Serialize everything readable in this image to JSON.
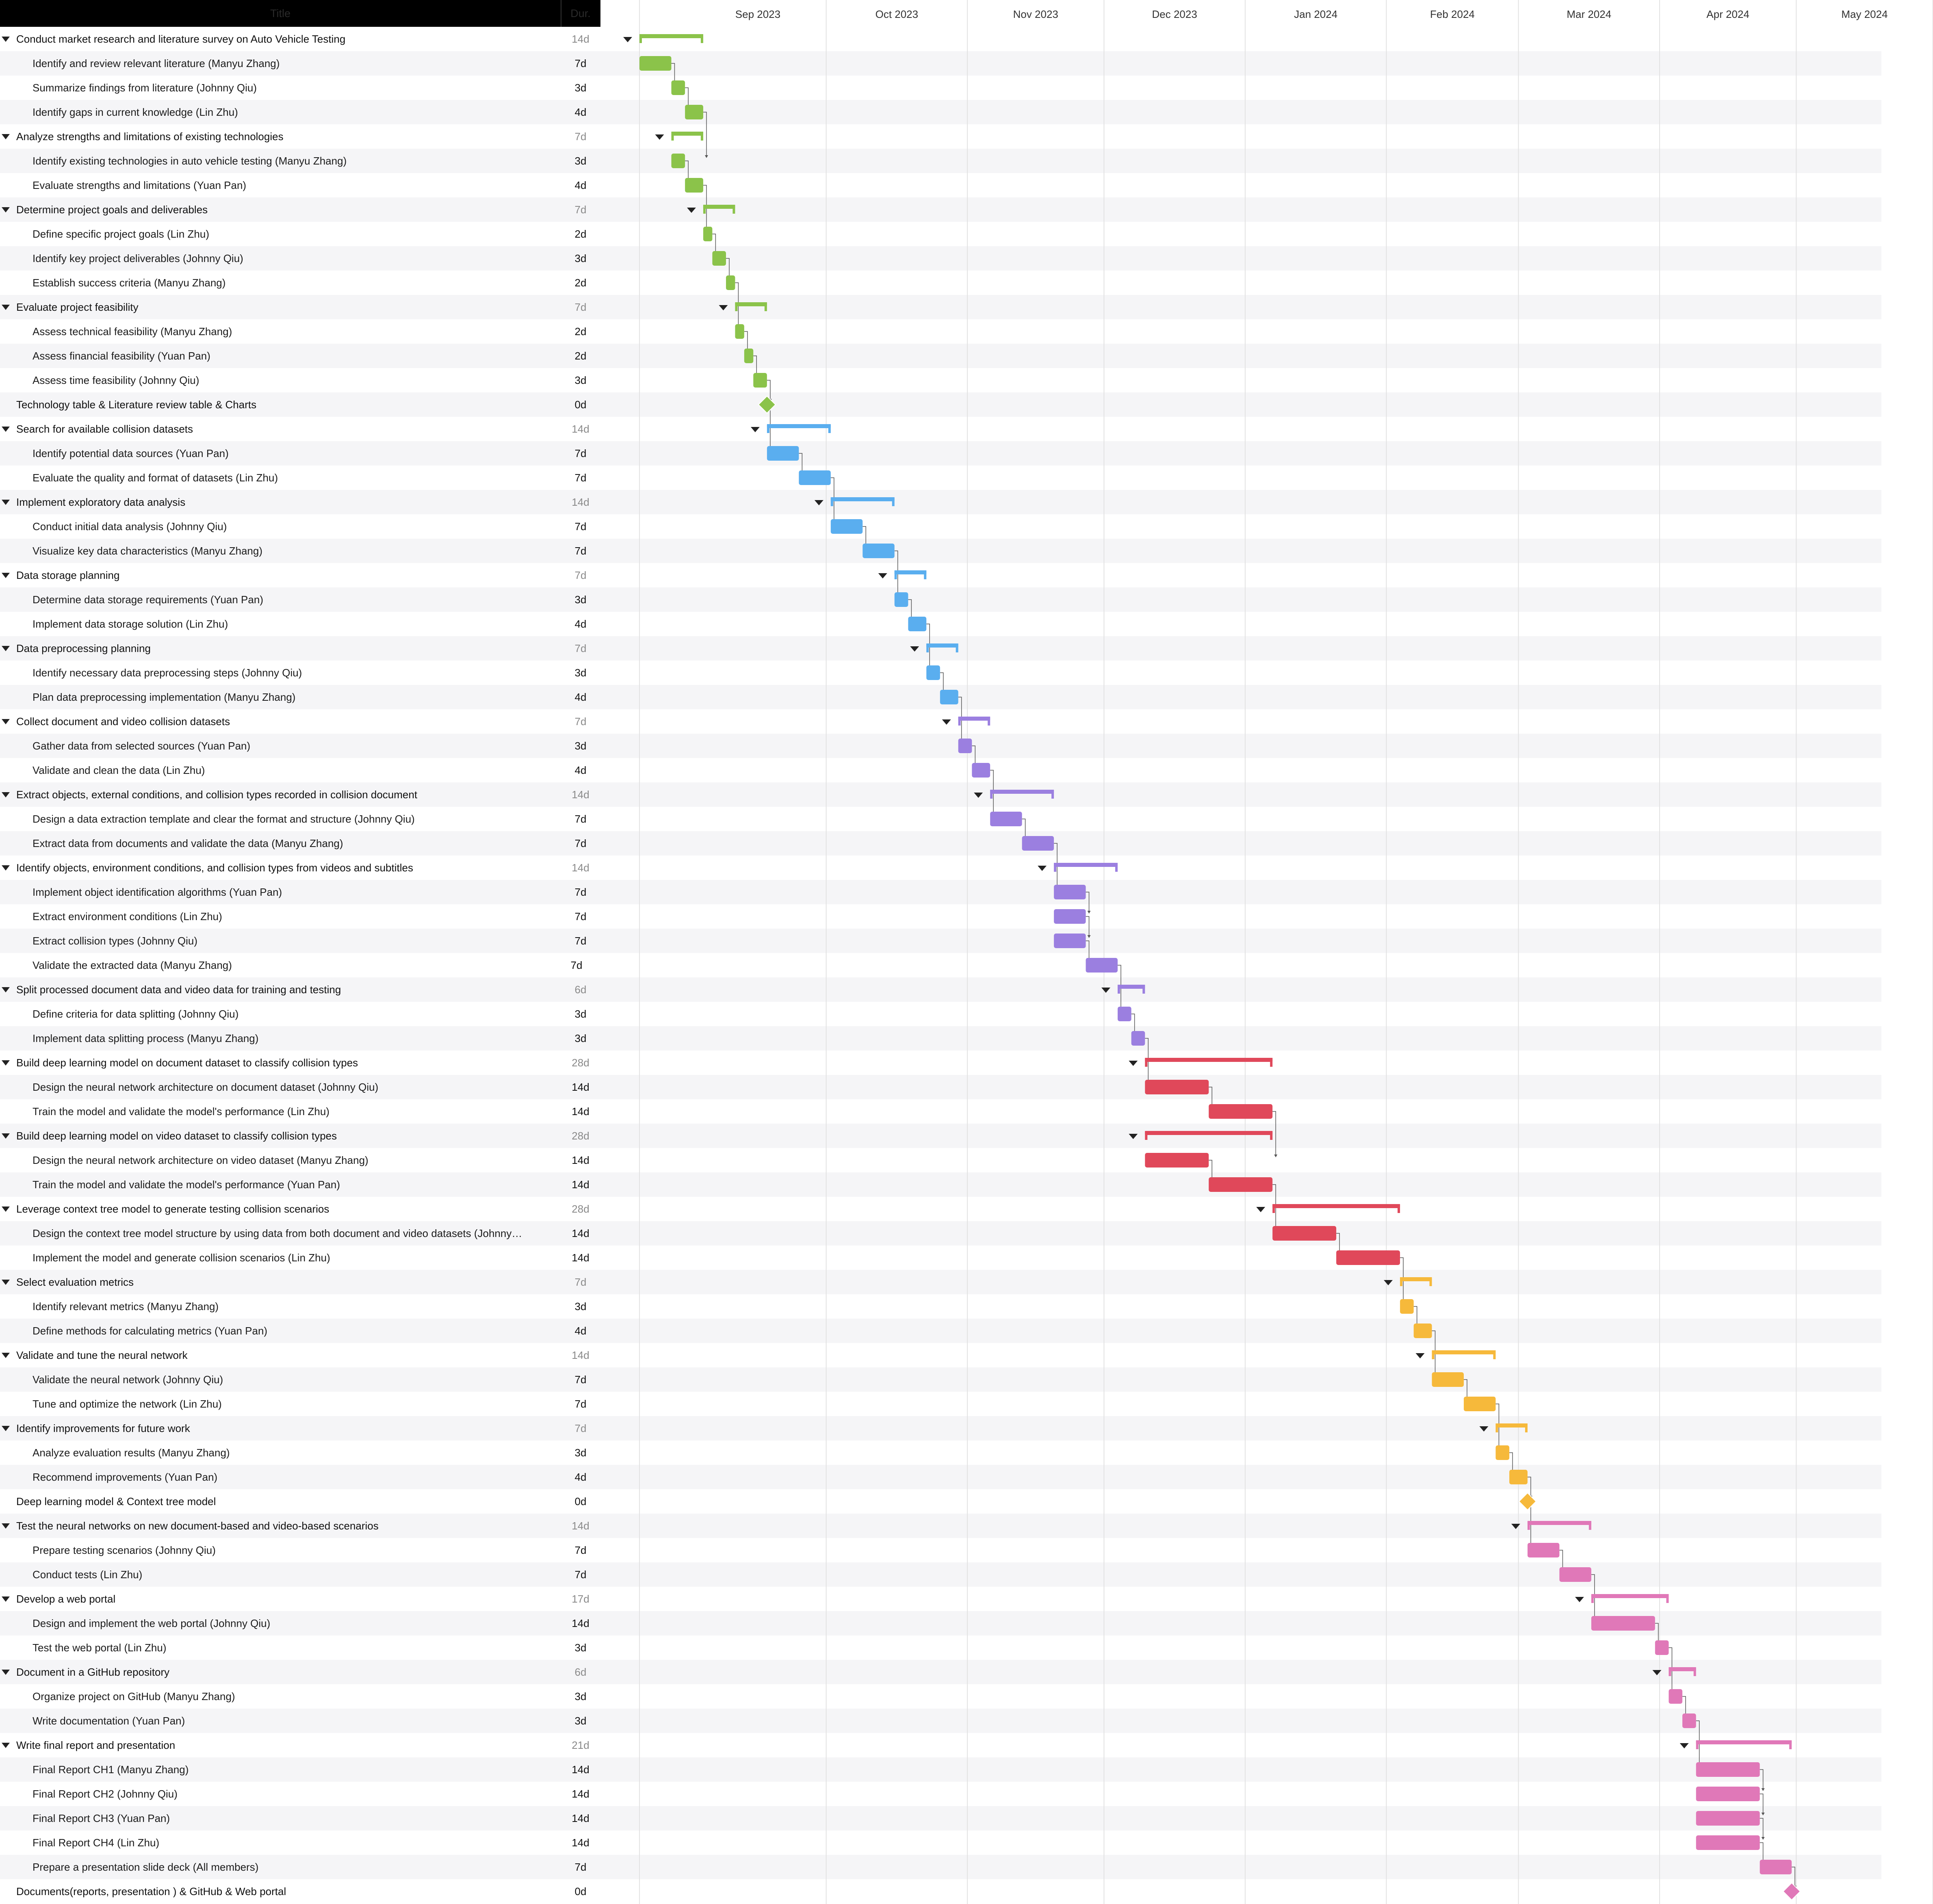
{
  "header": {
    "title": "Title",
    "duration": "Dur."
  },
  "colors": {
    "research": "#8bc34a",
    "data": "#5aaeef",
    "processing": "#9b7fe0",
    "modeling": "#e0485a",
    "evaluation": "#f6b93b",
    "delivery": "#e078b8"
  },
  "chart_data": {
    "type": "gantt",
    "x_axis": {
      "ticks": [
        "Sep 2023",
        "Oct 2023",
        "Nov 2023",
        "Dec 2023",
        "Jan 2024",
        "Feb 2024",
        "Mar 2024",
        "Apr 2024",
        "May 2024"
      ],
      "start": "2023-08-21",
      "end": "2024-05-12"
    },
    "tasks": [
      {
        "title": "Conduct market research and literature survey on Auto Vehicle Testing",
        "dur": "14d",
        "group": true,
        "start": "2023-08-21",
        "end": "2023-09-04",
        "color": "research"
      },
      {
        "title": "Identify and review relevant literature (Manyu Zhang)",
        "dur": "7d",
        "start": "2023-08-21",
        "end": "2023-08-28",
        "color": "research"
      },
      {
        "title": "Summarize findings from literature (Johnny Qiu)",
        "dur": "3d",
        "start": "2023-08-28",
        "end": "2023-08-31",
        "color": "research"
      },
      {
        "title": "Identify gaps in current knowledge (Lin Zhu)",
        "dur": "4d",
        "start": "2023-08-31",
        "end": "2023-09-04",
        "color": "research"
      },
      {
        "title": "Analyze strengths and limitations of existing technologies",
        "dur": "7d",
        "group": true,
        "start": "2023-08-28",
        "end": "2023-09-04",
        "color": "research"
      },
      {
        "title": "Identify existing technologies in auto vehicle testing (Manyu Zhang)",
        "dur": "3d",
        "start": "2023-08-28",
        "end": "2023-08-31",
        "color": "research"
      },
      {
        "title": "Evaluate strengths and limitations (Yuan Pan)",
        "dur": "4d",
        "start": "2023-08-31",
        "end": "2023-09-04",
        "color": "research"
      },
      {
        "title": "Determine project goals and deliverables",
        "dur": "7d",
        "group": true,
        "start": "2023-09-04",
        "end": "2023-09-11",
        "color": "research"
      },
      {
        "title": "Define specific project goals (Lin Zhu)",
        "dur": "2d",
        "start": "2023-09-04",
        "end": "2023-09-06",
        "color": "research"
      },
      {
        "title": "Identify key project deliverables (Johnny Qiu)",
        "dur": "3d",
        "start": "2023-09-06",
        "end": "2023-09-09",
        "color": "research"
      },
      {
        "title": "Establish success criteria (Manyu Zhang)",
        "dur": "2d",
        "start": "2023-09-09",
        "end": "2023-09-11",
        "color": "research"
      },
      {
        "title": "Evaluate project feasibility",
        "dur": "7d",
        "group": true,
        "start": "2023-09-11",
        "end": "2023-09-18",
        "color": "research"
      },
      {
        "title": "Assess technical feasibility (Manyu Zhang)",
        "dur": "2d",
        "start": "2023-09-11",
        "end": "2023-09-13",
        "color": "research"
      },
      {
        "title": "Assess financial feasibility (Yuan Pan)",
        "dur": "2d",
        "start": "2023-09-13",
        "end": "2023-09-15",
        "color": "research"
      },
      {
        "title": "Assess time feasibility (Johnny Qiu)",
        "dur": "3d",
        "start": "2023-09-15",
        "end": "2023-09-18",
        "color": "research"
      },
      {
        "title": "Technology table & Literature review table & Charts",
        "dur": "0d",
        "milestone": true,
        "start": "2023-09-18",
        "end": "2023-09-18",
        "color": "research"
      },
      {
        "title": "Search for available collision datasets",
        "dur": "14d",
        "group": true,
        "start": "2023-09-18",
        "end": "2023-10-02",
        "color": "data"
      },
      {
        "title": "Identify potential data sources (Yuan Pan)",
        "dur": "7d",
        "start": "2023-09-18",
        "end": "2023-09-25",
        "color": "data"
      },
      {
        "title": "Evaluate the quality and format of datasets (Lin Zhu)",
        "dur": "7d",
        "start": "2023-09-25",
        "end": "2023-10-02",
        "color": "data"
      },
      {
        "title": "Implement exploratory data analysis",
        "dur": "14d",
        "group": true,
        "start": "2023-10-02",
        "end": "2023-10-16",
        "color": "data"
      },
      {
        "title": "Conduct initial data analysis (Johnny Qiu)",
        "dur": "7d",
        "start": "2023-10-02",
        "end": "2023-10-09",
        "color": "data"
      },
      {
        "title": "Visualize key data characteristics (Manyu Zhang)",
        "dur": "7d",
        "start": "2023-10-09",
        "end": "2023-10-16",
        "color": "data"
      },
      {
        "title": "Data storage planning",
        "dur": "7d",
        "group": true,
        "start": "2023-10-16",
        "end": "2023-10-23",
        "color": "data"
      },
      {
        "title": "Determine data storage requirements (Yuan Pan)",
        "dur": "3d",
        "start": "2023-10-16",
        "end": "2023-10-19",
        "color": "data"
      },
      {
        "title": "Implement data storage solution (Lin Zhu)",
        "dur": "4d",
        "start": "2023-10-19",
        "end": "2023-10-23",
        "color": "data"
      },
      {
        "title": "Data preprocessing planning",
        "dur": "7d",
        "group": true,
        "start": "2023-10-23",
        "end": "2023-10-30",
        "color": "data"
      },
      {
        "title": "Identify necessary data preprocessing steps (Johnny Qiu)",
        "dur": "3d",
        "start": "2023-10-23",
        "end": "2023-10-26",
        "color": "data"
      },
      {
        "title": "Plan data preprocessing implementation (Manyu Zhang)",
        "dur": "4d",
        "start": "2023-10-26",
        "end": "2023-10-30",
        "color": "data"
      },
      {
        "title": "Collect document and video collision datasets",
        "dur": "7d",
        "group": true,
        "start": "2023-10-30",
        "end": "2023-11-06",
        "color": "processing"
      },
      {
        "title": "Gather data from selected sources (Yuan Pan)",
        "dur": "3d",
        "start": "2023-10-30",
        "end": "2023-11-02",
        "color": "processing"
      },
      {
        "title": "Validate and clean the data (Lin Zhu)",
        "dur": "4d",
        "start": "2023-11-02",
        "end": "2023-11-06",
        "color": "processing"
      },
      {
        "title": " Extract objects, external conditions, and collision types recorded in collision document",
        "dur": "14d",
        "group": true,
        "start": "2023-11-06",
        "end": "2023-11-20",
        "color": "processing"
      },
      {
        "title": "Design a data extraction template and clear the format and structure (Johnny Qiu)",
        "dur": "7d",
        "start": "2023-11-06",
        "end": "2023-11-13",
        "color": "processing"
      },
      {
        "title": "Extract data from documents and validate the data (Manyu Zhang)",
        "dur": "7d",
        "start": "2023-11-13",
        "end": "2023-11-20",
        "color": "processing"
      },
      {
        "title": "Identify objects, environment conditions, and collision types from videos and subtitles",
        "dur": "14d",
        "group": true,
        "start": "2023-11-20",
        "end": "2023-12-04",
        "color": "processing"
      },
      {
        "title": "Implement object identification algorithms (Yuan Pan)",
        "dur": "7d",
        "start": "2023-11-20",
        "end": "2023-11-27",
        "color": "processing"
      },
      {
        "title": "Extract environment conditions (Lin Zhu)",
        "dur": "7d",
        "start": "2023-11-20",
        "end": "2023-11-27",
        "color": "processing"
      },
      {
        "title": "Extract collision types (Johnny Qiu)",
        "dur": "7d",
        "start": "2023-11-20",
        "end": "2023-11-27",
        "color": "processing"
      },
      {
        "title": "Validate the extracted data (Manyu Zhang)",
        "dur": "7d",
        "start": "2023-11-27",
        "end": "2023-12-04",
        "color": "processing",
        "dur_offset": true
      },
      {
        "title": "Split processed document data and video data for training and testing",
        "dur": "6d",
        "group": true,
        "start": "2023-12-04",
        "end": "2023-12-10",
        "color": "processing"
      },
      {
        "title": "Define criteria for data splitting (Johnny Qiu)",
        "dur": "3d",
        "start": "2023-12-04",
        "end": "2023-12-07",
        "color": "processing"
      },
      {
        "title": "Implement data splitting process (Manyu Zhang)",
        "dur": "3d",
        "start": "2023-12-07",
        "end": "2023-12-10",
        "color": "processing"
      },
      {
        "title": "Build deep learning model on document dataset to classify collision types",
        "dur": "28d",
        "group": true,
        "start": "2023-12-10",
        "end": "2024-01-07",
        "color": "modeling"
      },
      {
        "title": "Design the neural network architecture on document dataset (Johnny Qiu)",
        "dur": "14d",
        "start": "2023-12-10",
        "end": "2023-12-24",
        "color": "modeling"
      },
      {
        "title": "Train the model and validate the model's performance (Lin Zhu)",
        "dur": "14d",
        "start": "2023-12-24",
        "end": "2024-01-07",
        "color": "modeling"
      },
      {
        "title": "Build deep learning model on video dataset to classify collision types",
        "dur": "28d",
        "group": true,
        "start": "2023-12-10",
        "end": "2024-01-07",
        "color": "modeling"
      },
      {
        "title": "Design the neural network architecture on video dataset (Manyu Zhang)",
        "dur": "14d",
        "start": "2023-12-10",
        "end": "2023-12-24",
        "color": "modeling"
      },
      {
        "title": "Train the model and validate the model's performance (Yuan Pan)",
        "dur": "14d",
        "start": "2023-12-24",
        "end": "2024-01-07",
        "color": "modeling"
      },
      {
        "title": "Leverage context tree model to generate testing collision scenarios",
        "dur": "28d",
        "group": true,
        "start": "2024-01-07",
        "end": "2024-02-04",
        "color": "modeling"
      },
      {
        "title": "Design the context tree model structure by using data from both document and video datasets (Johnny…",
        "dur": "14d",
        "start": "2024-01-07",
        "end": "2024-01-21",
        "color": "modeling"
      },
      {
        "title": "Implement the model and generate collision scenarios (Lin Zhu)",
        "dur": "14d",
        "start": "2024-01-21",
        "end": "2024-02-04",
        "color": "modeling"
      },
      {
        "title": "Select evaluation metrics",
        "dur": "7d",
        "group": true,
        "start": "2024-02-04",
        "end": "2024-02-11",
        "color": "evaluation"
      },
      {
        "title": "Identify relevant metrics (Manyu Zhang)",
        "dur": "3d",
        "start": "2024-02-04",
        "end": "2024-02-07",
        "color": "evaluation"
      },
      {
        "title": "Define methods for calculating metrics (Yuan Pan)",
        "dur": "4d",
        "start": "2024-02-07",
        "end": "2024-02-11",
        "color": "evaluation"
      },
      {
        "title": "Validate and tune the neural network",
        "dur": "14d",
        "group": true,
        "start": "2024-02-11",
        "end": "2024-02-25",
        "color": "evaluation"
      },
      {
        "title": "Validate the neural network (Johnny Qiu)",
        "dur": "7d",
        "start": "2024-02-11",
        "end": "2024-02-18",
        "color": "evaluation"
      },
      {
        "title": "Tune and optimize the network (Lin Zhu)",
        "dur": "7d",
        "start": "2024-02-18",
        "end": "2024-02-25",
        "color": "evaluation"
      },
      {
        "title": " Identify improvements for future work",
        "dur": "7d",
        "group": true,
        "start": "2024-02-25",
        "end": "2024-03-03",
        "color": "evaluation"
      },
      {
        "title": "Analyze evaluation results (Manyu Zhang)",
        "dur": "3d",
        "start": "2024-02-25",
        "end": "2024-02-28",
        "color": "evaluation"
      },
      {
        "title": "Recommend improvements (Yuan Pan)",
        "dur": "4d",
        "start": "2024-02-28",
        "end": "2024-03-03",
        "color": "evaluation"
      },
      {
        "title": "Deep learning model & Context tree model",
        "dur": "0d",
        "milestone": true,
        "start": "2024-03-03",
        "end": "2024-03-03",
        "color": "evaluation"
      },
      {
        "title": "Test the neural networks on new document-based and video-based scenarios",
        "dur": "14d",
        "group": true,
        "start": "2024-03-03",
        "end": "2024-03-17",
        "color": "delivery"
      },
      {
        "title": "Prepare testing scenarios (Johnny Qiu)",
        "dur": "7d",
        "start": "2024-03-03",
        "end": "2024-03-10",
        "color": "delivery"
      },
      {
        "title": "Conduct tests (Lin Zhu)",
        "dur": "7d",
        "start": "2024-03-10",
        "end": "2024-03-17",
        "color": "delivery"
      },
      {
        "title": "Develop a web portal",
        "dur": "17d",
        "group": true,
        "start": "2024-03-17",
        "end": "2024-04-03",
        "color": "delivery"
      },
      {
        "title": "Design and implement the web portal (Johnny Qiu)",
        "dur": "14d",
        "start": "2024-03-17",
        "end": "2024-03-31",
        "color": "delivery"
      },
      {
        "title": "Test the web portal (Lin Zhu)",
        "dur": "3d",
        "start": "2024-03-31",
        "end": "2024-04-03",
        "color": "delivery"
      },
      {
        "title": "Document in a GitHub repository",
        "dur": "6d",
        "group": true,
        "start": "2024-04-03",
        "end": "2024-04-09",
        "color": "delivery"
      },
      {
        "title": "Organize project on GitHub (Manyu Zhang)",
        "dur": "3d",
        "start": "2024-04-03",
        "end": "2024-04-06",
        "color": "delivery"
      },
      {
        "title": "Write documentation (Yuan Pan)",
        "dur": "3d",
        "start": "2024-04-06",
        "end": "2024-04-09",
        "color": "delivery"
      },
      {
        "title": "Write final report and presentation",
        "dur": "21d",
        "group": true,
        "start": "2024-04-09",
        "end": "2024-04-30",
        "color": "delivery"
      },
      {
        "title": "Final Report CH1 (Manyu Zhang)",
        "dur": "14d",
        "start": "2024-04-09",
        "end": "2024-04-23",
        "color": "delivery"
      },
      {
        "title": "Final Report CH2 (Johnny Qiu)",
        "dur": "14d",
        "start": "2024-04-09",
        "end": "2024-04-23",
        "color": "delivery"
      },
      {
        "title": "Final Report CH3 (Yuan Pan)",
        "dur": "14d",
        "start": "2024-04-09",
        "end": "2024-04-23",
        "color": "delivery"
      },
      {
        "title": "Final Report CH4 (Lin Zhu)",
        "dur": "14d",
        "start": "2024-04-09",
        "end": "2024-04-23",
        "color": "delivery"
      },
      {
        "title": "Prepare a presentation slide deck (All members)",
        "dur": "7d",
        "start": "2024-04-23",
        "end": "2024-04-30",
        "color": "delivery"
      },
      {
        "title": "Documents(reports,  presentation ) & GitHub & Web portal",
        "dur": "0d",
        "milestone": true,
        "start": "2024-04-30",
        "end": "2024-04-30",
        "color": "delivery"
      }
    ]
  }
}
